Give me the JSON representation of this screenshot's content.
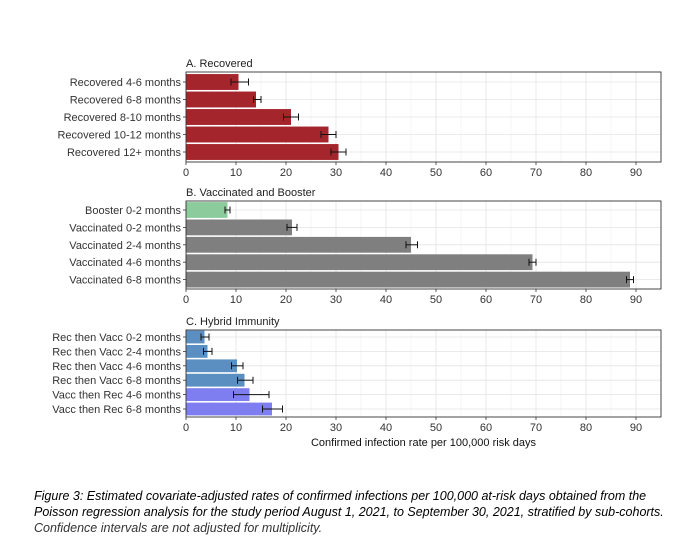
{
  "chart_data": [
    {
      "type": "bar",
      "orientation": "horizontal",
      "title": "A. Recovered",
      "categories": [
        "Recovered 4-6 months",
        "Recovered 6-8 months",
        "Recovered 8-10 months",
        "Recovered 10-12 months",
        "Recovered 12+ months"
      ],
      "values": [
        10.5,
        14,
        21,
        28.5,
        30.5
      ],
      "ci_low": [
        9,
        13.5,
        19.5,
        27,
        29
      ],
      "ci_high": [
        12.5,
        15,
        22.5,
        30,
        32
      ],
      "colors": [
        "#a4262c",
        "#a4262c",
        "#a4262c",
        "#a4262c",
        "#a4262c"
      ],
      "xlim": [
        0,
        95
      ],
      "xticks": [
        0,
        10,
        20,
        30,
        40,
        50,
        60,
        70,
        80,
        90
      ],
      "grid": true
    },
    {
      "type": "bar",
      "orientation": "horizontal",
      "title": "B. Vaccinated and Booster",
      "categories": [
        "Booster 0-2 months",
        "Vaccinated 0-2 months",
        "Vaccinated 2-4 months",
        "Vaccinated 4-6 months",
        "Vaccinated 6-8 months"
      ],
      "values": [
        8.3,
        21.2,
        45,
        69.3,
        88.8
      ],
      "ci_low": [
        7.8,
        20.2,
        44,
        68.6,
        88.1
      ],
      "ci_high": [
        8.8,
        22.2,
        46.3,
        70,
        89.5
      ],
      "colors": [
        "#8ccc9c",
        "#7f7f7f",
        "#7f7f7f",
        "#7f7f7f",
        "#7f7f7f"
      ],
      "xlim": [
        0,
        95
      ],
      "xticks": [
        0,
        10,
        20,
        30,
        40,
        50,
        60,
        70,
        80,
        90
      ],
      "grid": true
    },
    {
      "type": "bar",
      "orientation": "horizontal",
      "title": "C. Hybrid Immunity",
      "categories": [
        "Rec then Vacc 0-2 months",
        "Rec then Vacc 2-4 months",
        "Rec then Vacc 4-6 months",
        "Rec then Vacc 6-8 months",
        "Vacc then Rec 4-6 months",
        "Vacc then Rec 6-8 months"
      ],
      "values": [
        3.7,
        4.3,
        10.2,
        11.7,
        12.7,
        17.2
      ],
      "ci_low": [
        3,
        3.5,
        9.1,
        10.3,
        9.5,
        15.3
      ],
      "ci_high": [
        4.6,
        5.2,
        11.4,
        13.4,
        16.6,
        19.3
      ],
      "colors": [
        "#5b8fc2",
        "#5b8fc2",
        "#5b8fc2",
        "#5b8fc2",
        "#7e7ef0",
        "#7e7ef0"
      ],
      "xlim": [
        0,
        95
      ],
      "xticks": [
        0,
        10,
        20,
        30,
        40,
        50,
        60,
        70,
        80,
        90
      ],
      "xlabel": "Confirmed infection rate per 100,000 risk days",
      "grid": true
    }
  ],
  "caption": {
    "main": "Figure 3: Estimated covariate-adjusted rates of confirmed infections per 100,000 at-risk days obtained from the Poisson regression analysis for the study period August 1, 2021, to September 30, 2021, stratified by sub-cohorts.",
    "note": "Confidence intervals are not adjusted for multiplicity."
  }
}
